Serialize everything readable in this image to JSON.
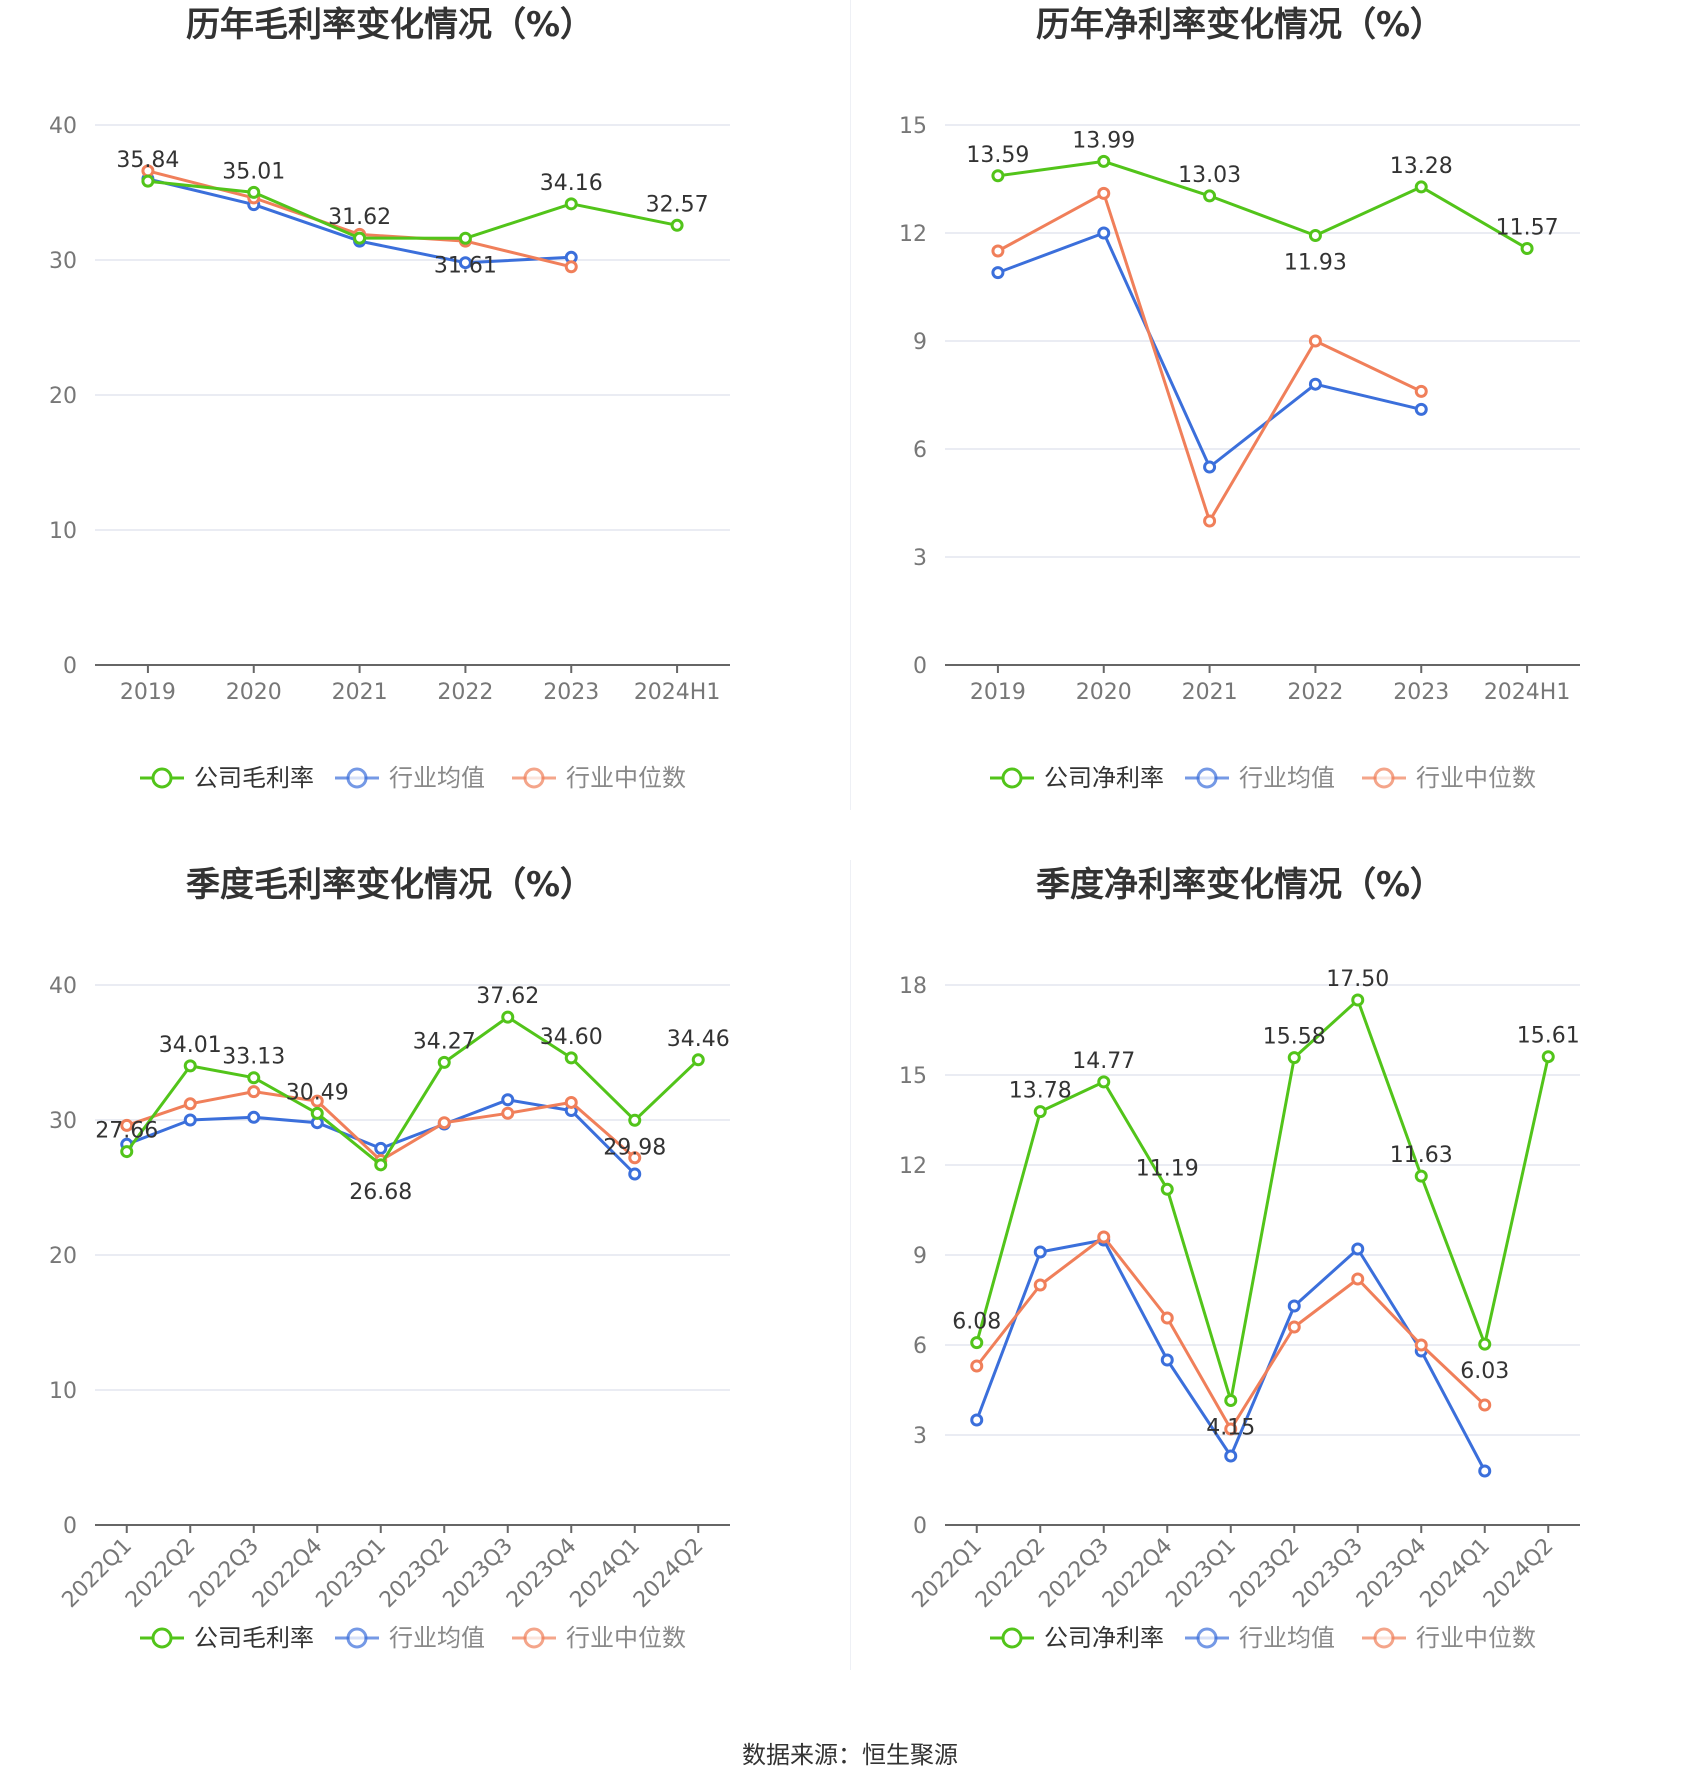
{
  "source": "数据来源：恒生聚源",
  "colors": {
    "company": "#52c41a",
    "avg": "#3b6fdb",
    "median": "#f07f5a"
  },
  "chart_data": [
    {
      "id": "annual-gross",
      "type": "line",
      "title": "历年毛利率变化情况（%）",
      "categories": [
        "2019",
        "2020",
        "2021",
        "2022",
        "2023",
        "2024H1"
      ],
      "ylim": [
        0,
        40
      ],
      "yticks": [
        0,
        10,
        20,
        30,
        40
      ],
      "grid": true,
      "legend_position": "bottom",
      "series": [
        {
          "name": "公司毛利率",
          "role": "company",
          "values": [
            35.84,
            35.01,
            31.62,
            31.61,
            34.16,
            32.57
          ],
          "labels": [
            "35.84",
            "35.01",
            "31.62",
            "31.61",
            "34.16",
            "32.57"
          ]
        },
        {
          "name": "行业均值",
          "role": "avg",
          "values": [
            36.0,
            34.1,
            31.4,
            29.8,
            30.2,
            null
          ]
        },
        {
          "name": "行业中位数",
          "role": "median",
          "values": [
            36.6,
            34.6,
            31.9,
            31.4,
            29.5,
            null
          ]
        }
      ]
    },
    {
      "id": "annual-net",
      "type": "line",
      "title": "历年净利率变化情况（%）",
      "categories": [
        "2019",
        "2020",
        "2021",
        "2022",
        "2023",
        "2024H1"
      ],
      "ylim": [
        0,
        15
      ],
      "yticks": [
        0,
        3,
        6,
        9,
        12,
        15
      ],
      "grid": true,
      "legend_position": "bottom",
      "series": [
        {
          "name": "公司净利率",
          "role": "company",
          "values": [
            13.59,
            13.99,
            13.03,
            11.93,
            13.28,
            11.57
          ],
          "labels": [
            "13.59",
            "13.99",
            "13.03",
            "11.93",
            "13.28",
            "11.57"
          ]
        },
        {
          "name": "行业均值",
          "role": "avg",
          "values": [
            10.9,
            12.0,
            5.5,
            7.8,
            7.1,
            null
          ]
        },
        {
          "name": "行业中位数",
          "role": "median",
          "values": [
            11.5,
            13.1,
            4.0,
            9.0,
            7.6,
            null
          ]
        }
      ]
    },
    {
      "id": "quarterly-gross",
      "type": "line",
      "title": "季度毛利率变化情况（%）",
      "categories": [
        "2022Q1",
        "2022Q2",
        "2022Q3",
        "2022Q4",
        "2023Q1",
        "2023Q2",
        "2023Q3",
        "2023Q4",
        "2024Q1",
        "2024Q2"
      ],
      "ylim": [
        0,
        40
      ],
      "yticks": [
        0,
        10,
        20,
        30,
        40
      ],
      "grid": true,
      "legend_position": "bottom",
      "series": [
        {
          "name": "公司毛利率",
          "role": "company",
          "values": [
            27.66,
            34.01,
            33.13,
            30.49,
            26.68,
            34.27,
            37.62,
            34.6,
            29.98,
            34.46
          ],
          "labels": [
            "27.66",
            "34.01",
            "33.13",
            "30.49",
            "26.68",
            "34.27",
            "37.62",
            "34.60",
            "29.98",
            "34.46"
          ]
        },
        {
          "name": "行业均值",
          "role": "avg",
          "values": [
            28.2,
            30.0,
            30.2,
            29.8,
            27.9,
            29.7,
            31.5,
            30.7,
            26.0,
            null
          ]
        },
        {
          "name": "行业中位数",
          "role": "median",
          "values": [
            29.6,
            31.2,
            32.1,
            31.4,
            27.0,
            29.8,
            30.5,
            31.3,
            27.2,
            null
          ]
        }
      ]
    },
    {
      "id": "quarterly-net",
      "type": "line",
      "title": "季度净利率变化情况（%）",
      "categories": [
        "2022Q1",
        "2022Q2",
        "2022Q3",
        "2022Q4",
        "2023Q1",
        "2023Q2",
        "2023Q3",
        "2023Q4",
        "2024Q1",
        "2024Q2"
      ],
      "ylim": [
        0,
        18
      ],
      "yticks": [
        0,
        3,
        6,
        9,
        12,
        15,
        18
      ],
      "grid": true,
      "legend_position": "bottom",
      "series": [
        {
          "name": "公司净利率",
          "role": "company",
          "values": [
            6.08,
            13.78,
            14.77,
            11.19,
            4.15,
            15.58,
            17.5,
            11.63,
            6.03,
            15.61
          ],
          "labels": [
            "6.08",
            "13.78",
            "14.77",
            "11.19",
            "4.15",
            "15.58",
            "17.50",
            "11.63",
            "6.03",
            "15.61"
          ]
        },
        {
          "name": "行业均值",
          "role": "avg",
          "values": [
            3.5,
            9.1,
            9.5,
            5.5,
            2.3,
            7.3,
            9.2,
            5.8,
            1.8,
            null
          ]
        },
        {
          "name": "行业中位数",
          "role": "median",
          "values": [
            5.3,
            8.0,
            9.6,
            6.9,
            3.2,
            6.6,
            8.2,
            6.0,
            4.0,
            null
          ]
        }
      ]
    }
  ]
}
